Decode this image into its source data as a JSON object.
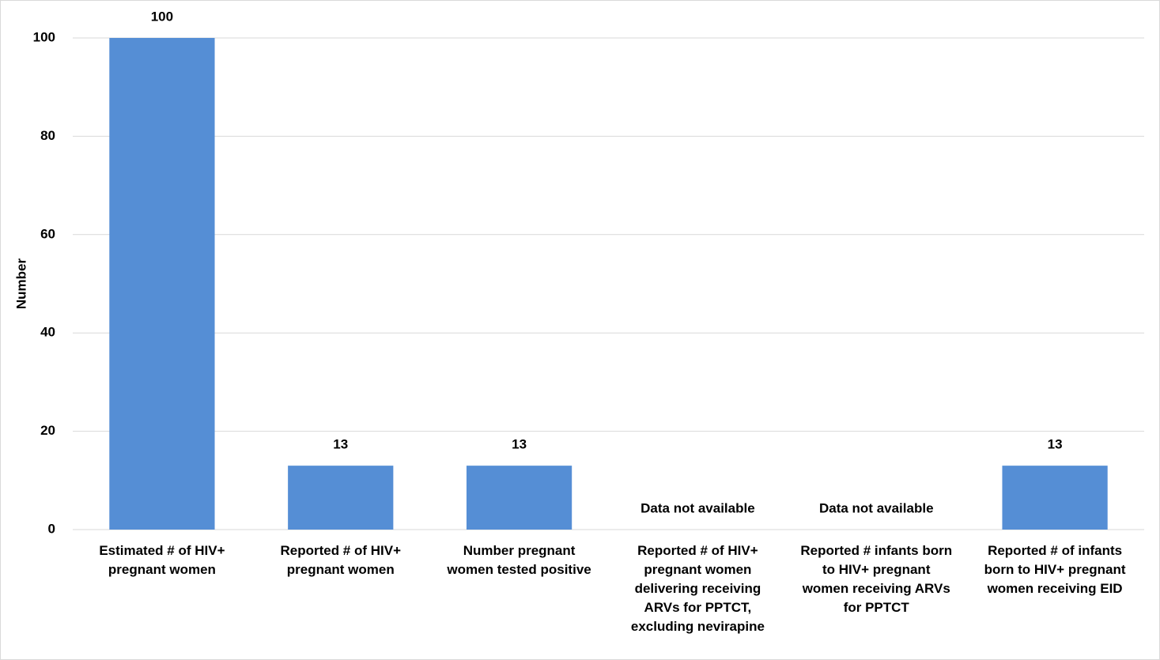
{
  "chart_data": {
    "type": "bar",
    "categories": [
      "Estimated # of HIV+ pregnant women",
      "Reported # of HIV+ pregnant women",
      "Number pregnant women tested positive",
      "Reported # of HIV+ pregnant women delivering receiving ARVs for PPTCT, excluding nevirapine",
      "Reported # infants born to HIV+ pregnant women receiving ARVs for PPTCT",
      "Reported # of infants born to HIV+ pregnant women receiving EID"
    ],
    "values": [
      100,
      13,
      13,
      null,
      null,
      13
    ],
    "value_labels": [
      "100",
      "13",
      "13",
      "Data not available",
      "Data not available",
      "13"
    ],
    "color": "#558ed5",
    "y_label": "Number",
    "ylim": [
      0,
      100
    ],
    "yticks": [
      0,
      20,
      40,
      60,
      80,
      100
    ],
    "grid": true
  }
}
